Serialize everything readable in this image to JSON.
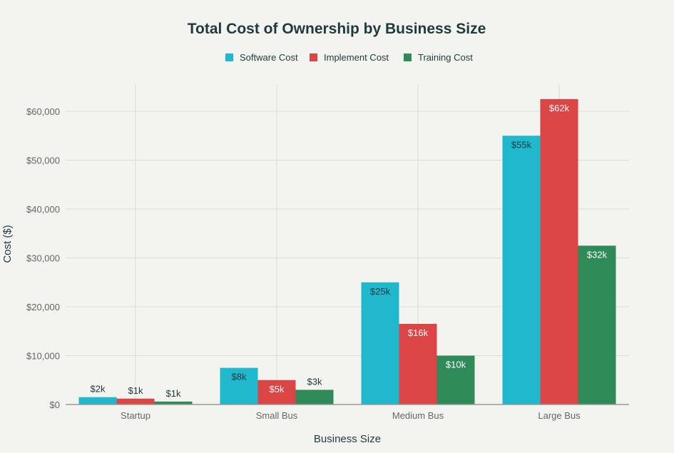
{
  "chart_data": {
    "type": "bar",
    "title": "Total Cost of Ownership by Business Size",
    "xlabel": "Business Size",
    "ylabel": "Cost ($)",
    "ylim": [
      0,
      65000
    ],
    "yticks": [
      0,
      10000,
      20000,
      30000,
      40000,
      50000,
      60000
    ],
    "ytick_labels": [
      "$0",
      "$10,000",
      "$20,000",
      "$30,000",
      "$40,000",
      "$50,000",
      "$60,000"
    ],
    "grid": true,
    "legend_position": "top-center",
    "categories": [
      "Startup",
      "Small Bus",
      "Medium Bus",
      "Large Bus"
    ],
    "series": [
      {
        "name": "Software Cost",
        "color": "#1fb8cd",
        "values": [
          1500,
          7500,
          25000,
          55000
        ],
        "labels": [
          "$2k",
          "$8k",
          "$25k",
          "$55k"
        ]
      },
      {
        "name": "Implement Cost",
        "color": "#db4545",
        "values": [
          1200,
          5000,
          16500,
          62500
        ],
        "labels": [
          "$1k",
          "$5k",
          "$16k",
          "$62k"
        ]
      },
      {
        "name": "Training Cost",
        "color": "#2e8b57",
        "values": [
          600,
          3000,
          10000,
          32500
        ],
        "labels": [
          "$1k",
          "$3k",
          "$10k",
          "$32k"
        ]
      }
    ]
  }
}
